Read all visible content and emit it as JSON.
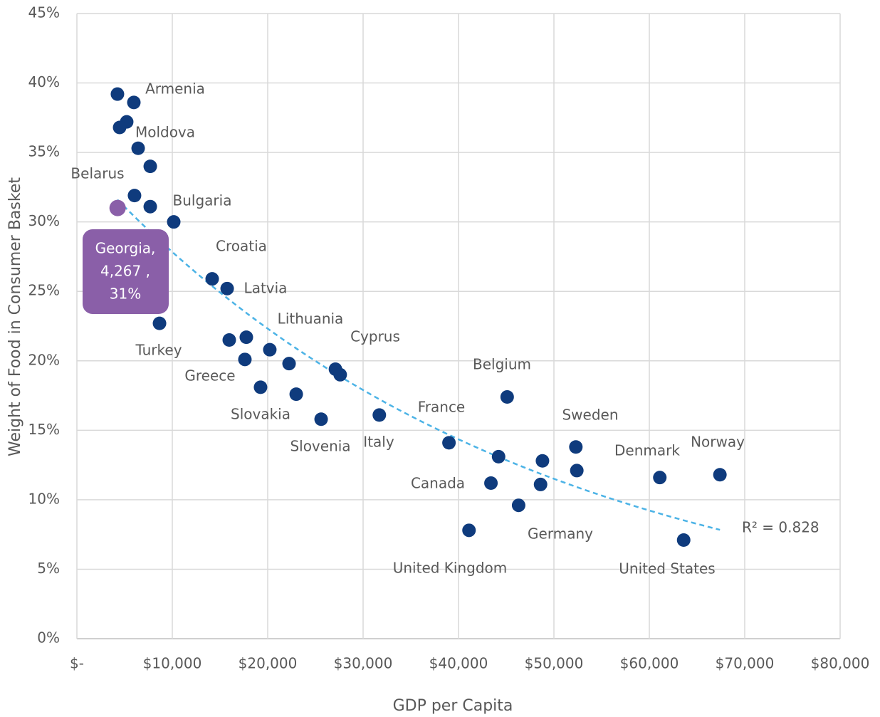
{
  "chart_data": {
    "type": "scatter",
    "x_label": "GDP per Capita",
    "y_label": "Weight of Food in Consumer Basket",
    "x": [
      4250,
      5970,
      5220,
      4480,
      6420,
      7690,
      6040,
      7690,
      10150,
      14180,
      15750,
      8660,
      15970,
      17760,
      17610,
      20220,
      22240,
      19250,
      22990,
      25600,
      27100,
      27600,
      31700,
      39000,
      45100,
      44200,
      43400,
      48800,
      48600,
      46300,
      41100,
      52300,
      52400,
      61100,
      67400,
      63600
    ],
    "y": [
      39.2,
      38.6,
      37.2,
      36.8,
      35.3,
      34.0,
      31.9,
      31.1,
      30.0,
      25.9,
      25.2,
      22.7,
      21.5,
      21.7,
      20.1,
      20.8,
      19.8,
      18.1,
      17.6,
      15.8,
      19.4,
      19.0,
      16.1,
      14.1,
      17.4,
      13.1,
      11.2,
      12.8,
      11.1,
      9.6,
      7.8,
      13.8,
      12.1,
      11.6,
      11.8,
      7.1
    ],
    "point_labels": [
      null,
      "Armenia",
      null,
      null,
      "Moldova",
      null,
      "Belarus",
      null,
      "Bulgaria",
      "Croatia",
      "Latvia",
      "Turkey",
      null,
      "Lithuania",
      "Greece",
      null,
      null,
      "Slovakia",
      null,
      "Slovenia",
      "Cyprus",
      null,
      "Italy",
      "France",
      "Belgium",
      null,
      "Canada",
      null,
      null,
      "Germany",
      "United Kingdom",
      "Sweden",
      null,
      "Denmark",
      "Norway",
      "United States"
    ],
    "color": "#0f3b7d",
    "highlight": {
      "x": 4267,
      "y": 31,
      "color": "#8a5fa8",
      "label": [
        "Georgia,",
        "4,267 ,",
        "31%"
      ]
    },
    "trendline": "exponential",
    "trendline_color": "#4cb3e6",
    "r_squared_label": "R² = 0.828",
    "xlim": [
      0,
      80000
    ],
    "xticks": [
      {
        "value": 0,
        "label": "$-"
      },
      {
        "value": 10000,
        "label": "$10,000"
      },
      {
        "value": 20000,
        "label": "$20,000"
      },
      {
        "value": 30000,
        "label": "$30,000"
      },
      {
        "value": 40000,
        "label": "$40,000"
      },
      {
        "value": 50000,
        "label": "$50,000"
      },
      {
        "value": 60000,
        "label": "$60,000"
      },
      {
        "value": 70000,
        "label": "$70,000"
      },
      {
        "value": 80000,
        "label": "$80,000"
      }
    ],
    "ylim": [
      0,
      45
    ],
    "yticks": [
      {
        "value": 0,
        "label": "0%"
      },
      {
        "value": 5,
        "label": "5%"
      },
      {
        "value": 10,
        "label": "10%"
      },
      {
        "value": 15,
        "label": "15%"
      },
      {
        "value": 20,
        "label": "20%"
      },
      {
        "value": 25,
        "label": "25%"
      },
      {
        "value": 30,
        "label": "30%"
      },
      {
        "value": 35,
        "label": "35%"
      },
      {
        "value": 40,
        "label": "40%"
      },
      {
        "value": 45,
        "label": "45%"
      }
    ],
    "grid": true
  }
}
